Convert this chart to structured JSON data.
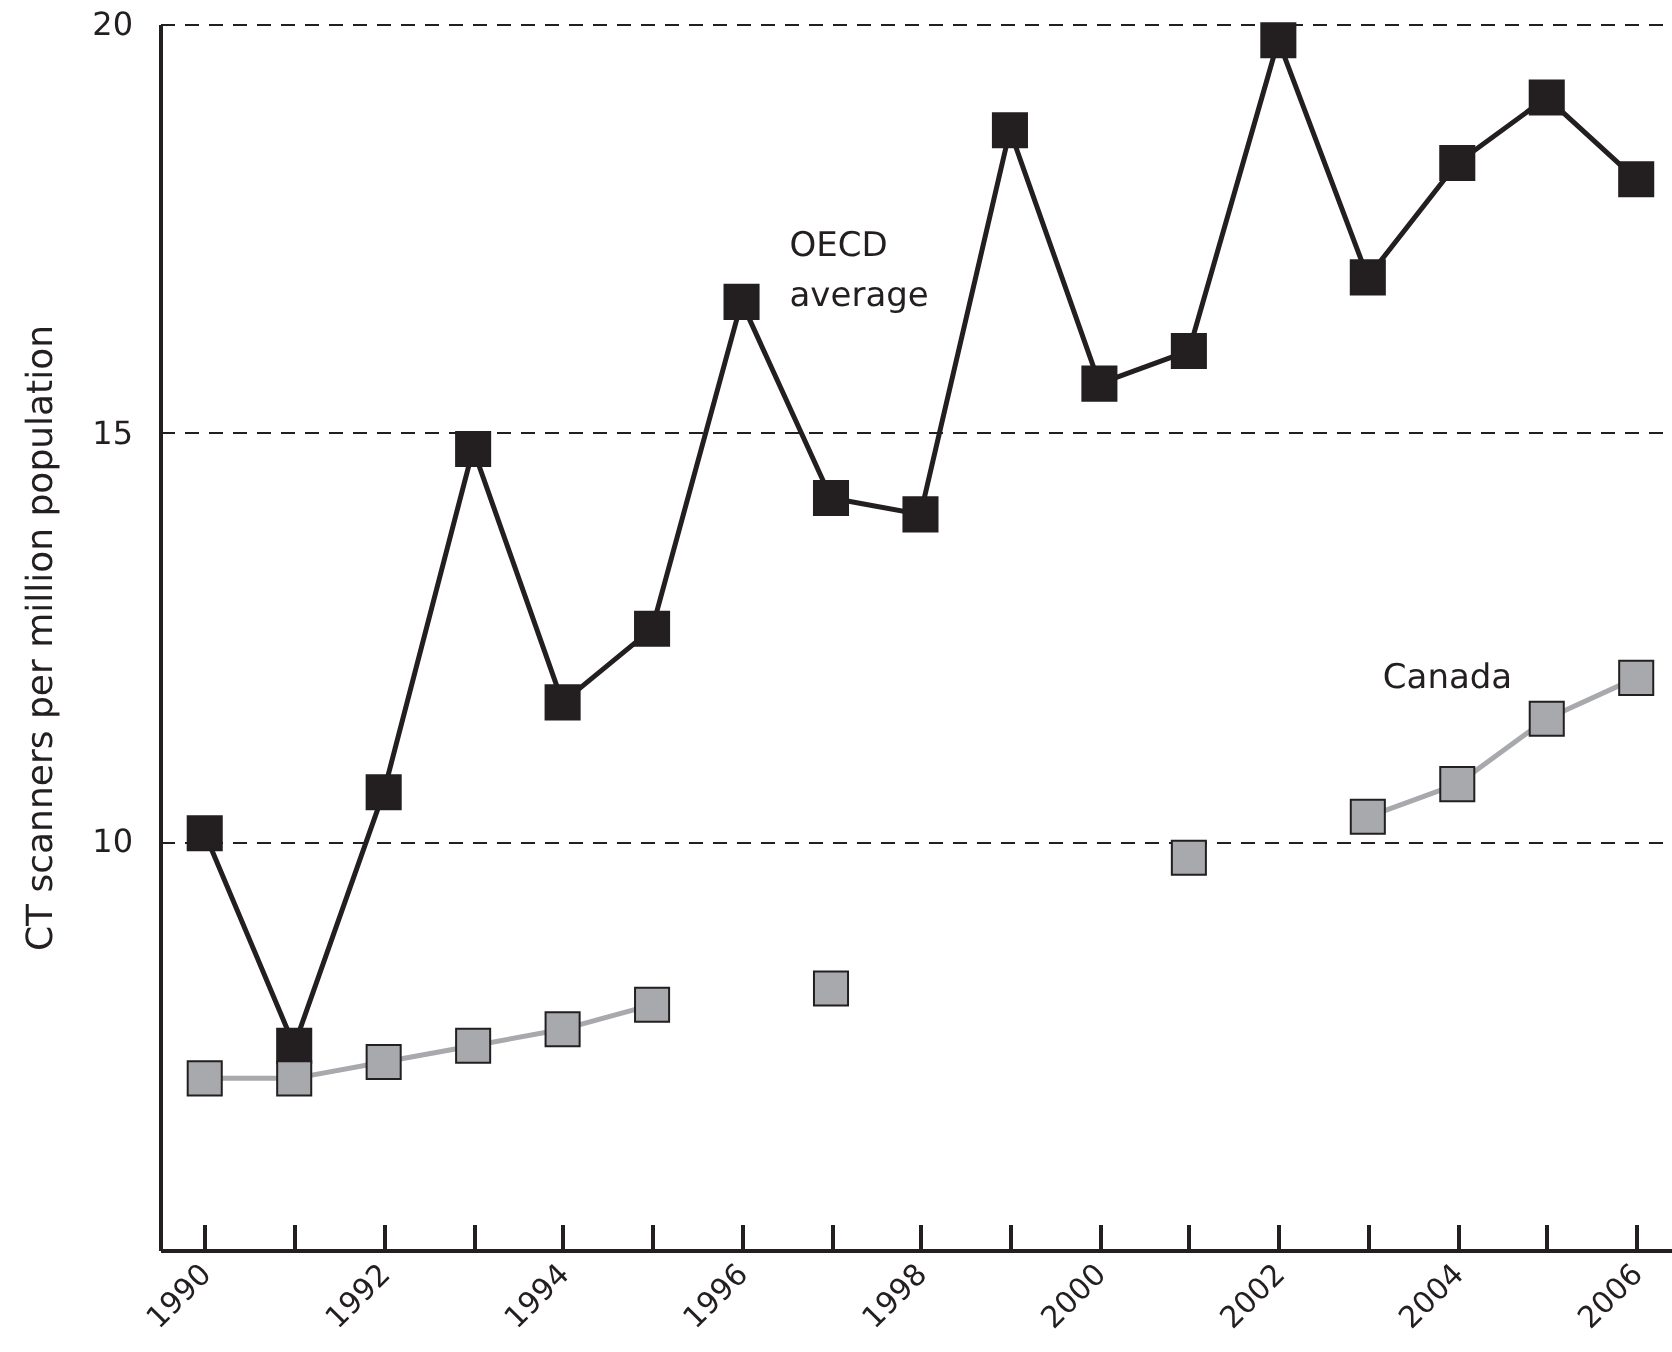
{
  "chart_data": {
    "type": "line",
    "ylabel": "CT scanners per million population",
    "x": [
      1990,
      1991,
      1992,
      1993,
      1994,
      1995,
      1996,
      1997,
      1998,
      1999,
      2000,
      2001,
      2002,
      2003,
      2004,
      2005,
      2006
    ],
    "series": [
      {
        "name": "OECD average",
        "color": "#231f20",
        "values": [
          10.1,
          7.5,
          10.6,
          14.8,
          11.7,
          12.6,
          16.6,
          14.2,
          14.0,
          18.7,
          15.6,
          16.0,
          19.8,
          16.9,
          18.3,
          19.1,
          18.1
        ]
      },
      {
        "name": "Canada",
        "color": "#a7a9ac",
        "values": [
          7.1,
          7.1,
          7.3,
          7.5,
          7.7,
          8.0,
          null,
          8.2,
          null,
          null,
          null,
          9.8,
          null,
          10.3,
          10.7,
          11.5,
          12.0
        ]
      }
    ],
    "xlim": [
      1989.5,
      2006.4
    ],
    "xticks": [
      1990,
      {
        "value": 1991,
        "label": null
      },
      1992,
      {
        "value": 1993,
        "label": null
      },
      1994,
      {
        "value": 1995,
        "label": null
      },
      1996,
      {
        "value": 1997,
        "label": null
      },
      1998,
      {
        "value": 1999,
        "label": null
      },
      2000,
      {
        "value": 2001,
        "label": null
      },
      2002,
      {
        "value": 2003,
        "label": null
      },
      2004,
      {
        "value": 2005,
        "label": null
      },
      2006
    ],
    "ylim": [
      5,
      20
    ],
    "yticks": [
      10,
      15,
      20
    ],
    "grid": "y",
    "marker": "square",
    "line_style": "solid"
  }
}
